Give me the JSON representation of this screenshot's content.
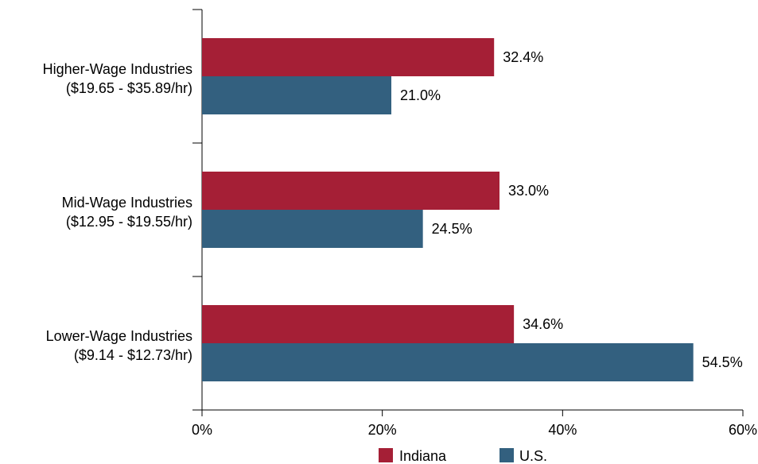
{
  "chart_data": {
    "type": "bar",
    "orientation": "horizontal",
    "categories": [
      [
        "Higher-Wage Industries",
        "($19.65 - $35.89/hr)"
      ],
      [
        "Mid-Wage Industries",
        "($12.95 - $19.55/hr)"
      ],
      [
        "Lower-Wage Industries",
        "($9.14 - $12.73/hr)"
      ]
    ],
    "series": [
      {
        "name": "Indiana",
        "color": "#a51f36",
        "values": [
          32.4,
          33.0,
          34.6
        ],
        "labels": [
          "32.4%",
          "33.0%",
          "34.6%"
        ]
      },
      {
        "name": "U.S.",
        "color": "#33607f",
        "values": [
          21.0,
          24.5,
          54.5
        ],
        "labels": [
          "21.0%",
          "24.5%",
          "54.5%"
        ]
      }
    ],
    "xlim": [
      0,
      60
    ],
    "xticks": [
      0,
      20,
      40,
      60
    ],
    "xtick_labels": [
      "0%",
      "20%",
      "40%",
      "60%"
    ],
    "grid": false,
    "legend_position": "bottom-center"
  }
}
